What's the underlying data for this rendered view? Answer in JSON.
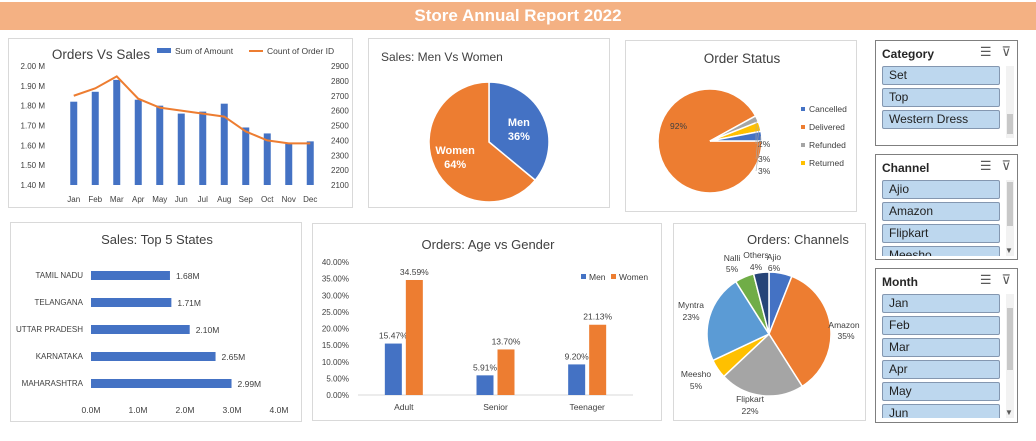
{
  "title": "Store Annual Report 2022",
  "colors": {
    "blue": "#4472c4",
    "orange": "#ed7d31",
    "gray": "#a5a5a5",
    "yellow": "#ffc000",
    "lightblue": "#5b9bd5",
    "green": "#70ad47",
    "navy": "#264478",
    "banner": "#f4b183"
  },
  "chart_data": [
    {
      "id": "orders_vs_sales",
      "type": "bar",
      "title": "Orders Vs Sales",
      "categories": [
        "Jan",
        "Feb",
        "Mar",
        "Apr",
        "May",
        "Jun",
        "Jul",
        "Aug",
        "Sep",
        "Oct",
        "Nov",
        "Dec"
      ],
      "series": [
        {
          "name": "Sum of Amount",
          "type": "bar",
          "axis": "left",
          "values": [
            1.82,
            1.87,
            1.93,
            1.83,
            1.8,
            1.76,
            1.77,
            1.81,
            1.69,
            1.66,
            1.61,
            1.62
          ]
        },
        {
          "name": "Count of Order ID",
          "type": "line",
          "axis": "right",
          "values": [
            2700,
            2750,
            2830,
            2680,
            2620,
            2600,
            2580,
            2560,
            2460,
            2400,
            2380,
            2380
          ]
        }
      ],
      "ylim_left": [
        1.4,
        2.0
      ],
      "yticks_left": [
        "1.40 M",
        "1.50 M",
        "1.60 M",
        "1.70 M",
        "1.80 M",
        "1.90 M",
        "2.00 M"
      ],
      "ylim_right": [
        2100,
        2900
      ],
      "yticks_right": [
        "2100",
        "2200",
        "2300",
        "2400",
        "2500",
        "2600",
        "2700",
        "2800",
        "2900"
      ],
      "legend": "top"
    },
    {
      "id": "sales_men_women",
      "type": "pie",
      "title": "Sales: Men Vs Women",
      "labels": [
        "Men",
        "Women"
      ],
      "values": [
        36,
        64
      ],
      "display": [
        "36%",
        "64%"
      ]
    },
    {
      "id": "order_status",
      "type": "pie",
      "title": "Order Status",
      "labels": [
        "Cancelled",
        "Delivered",
        "Refunded",
        "Returned"
      ],
      "values": [
        3,
        92,
        2,
        3
      ],
      "display": [
        "3%",
        "92%",
        "2%",
        "3%"
      ],
      "legend": "right"
    },
    {
      "id": "top5_states",
      "type": "bar",
      "orientation": "horizontal",
      "title": "Sales: Top 5 States",
      "categories": [
        "TAMIL NADU",
        "TELANGANA",
        "UTTAR PRADESH",
        "KARNATAKA",
        "MAHARASHTRA"
      ],
      "values": [
        1.68,
        1.71,
        2.1,
        2.65,
        2.99
      ],
      "display": [
        "1.68M",
        "1.71M",
        "2.10M",
        "2.65M",
        "2.99M"
      ],
      "xlim": [
        0,
        4
      ],
      "xticks": [
        "0.0M",
        "1.0M",
        "2.0M",
        "3.0M",
        "4.0M"
      ]
    },
    {
      "id": "age_vs_gender",
      "type": "bar",
      "title": "Orders: Age vs Gender",
      "categories": [
        "Adult",
        "Senior",
        "Teenager"
      ],
      "series": [
        {
          "name": "Men",
          "values": [
            15.47,
            5.91,
            9.2
          ],
          "display": [
            "15.47%",
            "5.91%",
            "9.20%"
          ]
        },
        {
          "name": "Women",
          "values": [
            34.59,
            13.7,
            21.13
          ],
          "display": [
            "34.59%",
            "13.70%",
            "21.13%"
          ]
        }
      ],
      "ylim": [
        0,
        40
      ],
      "yticks": [
        "0.00%",
        "5.00%",
        "10.00%",
        "15.00%",
        "20.00%",
        "25.00%",
        "30.00%",
        "35.00%",
        "40.00%"
      ],
      "legend": "top-right"
    },
    {
      "id": "channels",
      "type": "pie",
      "title": "Orders: Channels",
      "labels": [
        "Ajio",
        "Amazon",
        "Flipkart",
        "Meesho",
        "Myntra",
        "Nalli",
        "Others"
      ],
      "values": [
        6,
        35,
        22,
        5,
        23,
        5,
        4
      ],
      "display": [
        "6%",
        "35%",
        "22%",
        "5%",
        "23%",
        "5%",
        "4%"
      ]
    }
  ],
  "slicers": {
    "category": {
      "title": "Category",
      "items": [
        "Set",
        "Top",
        "Western Dress"
      ]
    },
    "channel": {
      "title": "Channel",
      "items": [
        "Ajio",
        "Amazon",
        "Flipkart",
        "Meesho"
      ]
    },
    "month": {
      "title": "Month",
      "items": [
        "Jan",
        "Feb",
        "Mar",
        "Apr",
        "May",
        "Jun"
      ]
    }
  },
  "icons": {
    "multiselect": "multi-select-icon",
    "clear_filter": "clear-filter-icon"
  }
}
